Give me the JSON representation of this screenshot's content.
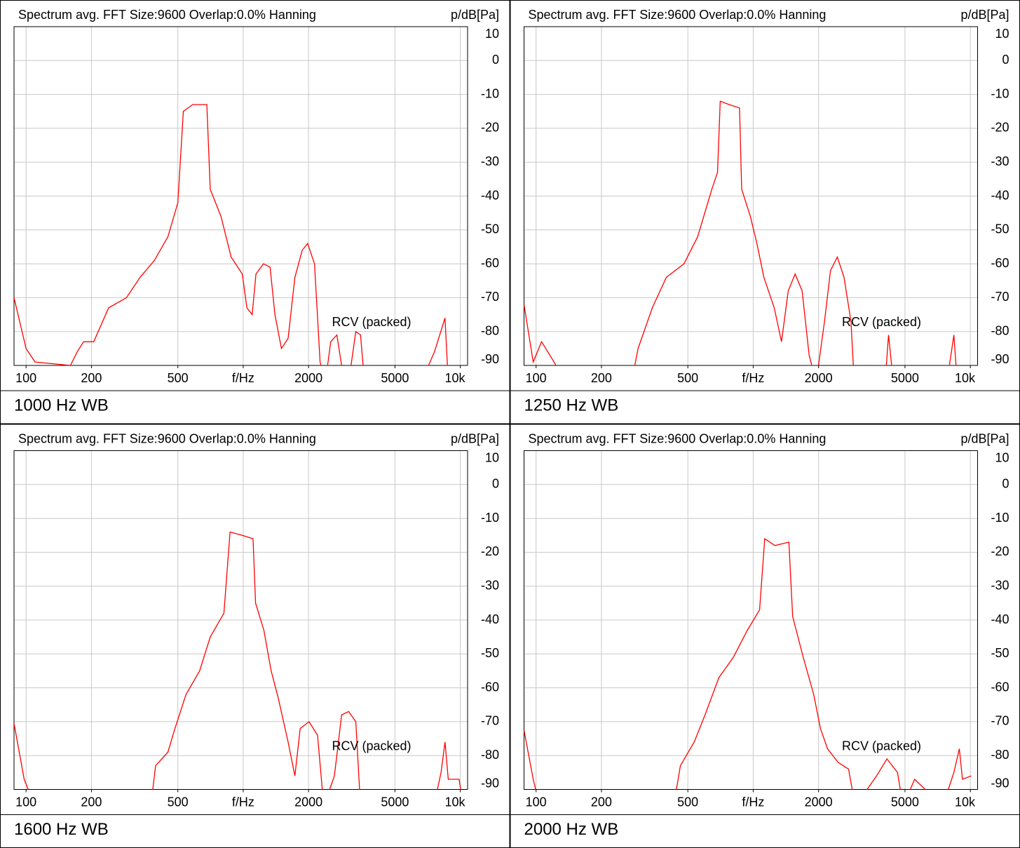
{
  "chart_data": [
    {
      "type": "line",
      "title": "Spectrum avg.  FFT Size:9600  Overlap:0.0%  Hanning",
      "ylabel": "p/dB[Pa]",
      "annotation": "RCV (packed)",
      "caption": "1000 Hz WB",
      "x_log": true,
      "grid": true,
      "color": "#ff0000",
      "xlim": [
        88,
        10800
      ],
      "ylim": [
        -90,
        10
      ],
      "xticks": [
        100,
        200,
        500,
        {
          "value": 1000,
          "label": "f/Hz"
        },
        2000,
        5000,
        {
          "value": 10000,
          "label": "10k"
        }
      ],
      "yticks": [
        10,
        0,
        -10,
        -20,
        -30,
        -40,
        -50,
        -60,
        -70,
        -80,
        -90
      ],
      "x": [
        88,
        95,
        100,
        110,
        160,
        172,
        184,
        205,
        240,
        290,
        335,
        390,
        450,
        500,
        530,
        585,
        680,
        705,
        790,
        880,
        990,
        1040,
        1100,
        1145,
        1240,
        1330,
        1400,
        1500,
        1610,
        1730,
        1870,
        1980,
        2130,
        2260,
        2390,
        2530,
        2700,
        2840,
        3060,
        3300,
        3470,
        3620,
        6600,
        7600,
        8500,
        8800
      ],
      "values": [
        -70,
        -79,
        -85,
        -89,
        -90,
        -86,
        -83,
        -83,
        -73,
        -70,
        -64,
        -59,
        -52,
        -42,
        -15,
        -13,
        -13,
        -38,
        -46,
        -58,
        -63,
        -73,
        -75,
        -63,
        -60,
        -61,
        -75,
        -85,
        -82,
        -64,
        -56,
        -54,
        -60,
        -89,
        -95,
        -83,
        -81,
        -90,
        -95,
        -80,
        -81,
        -95,
        -95,
        -86,
        -76,
        -95
      ]
    },
    {
      "type": "line",
      "title": "Spectrum avg.  FFT Size:9600  Overlap:0.0%  Hanning",
      "ylabel": "p/dB[Pa]",
      "annotation": "RCV (packed)",
      "caption": "1250 Hz WB",
      "x_log": true,
      "grid": true,
      "color": "#ff0000",
      "xlim": [
        88,
        10800
      ],
      "ylim": [
        -90,
        10
      ],
      "xticks": [
        100,
        200,
        500,
        {
          "value": 1000,
          "label": "f/Hz"
        },
        2000,
        5000,
        {
          "value": 10000,
          "label": "10k"
        }
      ],
      "yticks": [
        10,
        0,
        -10,
        -20,
        -30,
        -40,
        -50,
        -60,
        -70,
        -80,
        -90
      ],
      "x": [
        88,
        97,
        106,
        121,
        136,
        275,
        295,
        343,
        398,
        480,
        555,
        645,
        685,
        705,
        775,
        865,
        885,
        970,
        1040,
        1120,
        1250,
        1350,
        1450,
        1560,
        1680,
        1810,
        1950,
        2130,
        2270,
        2440,
        2620,
        2820,
        2920,
        4050,
        4200,
        4420,
        7800,
        8400,
        8700
      ],
      "values": [
        -72,
        -89,
        -83,
        -89,
        -95,
        -95,
        -85,
        -73,
        -64,
        -60,
        -52,
        -38,
        -33,
        -12,
        -13,
        -14,
        -38,
        -46,
        -54,
        -64,
        -73,
        -83,
        -68,
        -63,
        -68,
        -87,
        -95,
        -77,
        -62,
        -58,
        -64,
        -77,
        -95,
        -95,
        -81,
        -95,
        -95,
        -81,
        -95
      ]
    },
    {
      "type": "line",
      "title": "Spectrum avg.  FFT Size:9600  Overlap:0.0%  Hanning",
      "ylabel": "p/dB[Pa]",
      "annotation": "RCV (packed)",
      "caption": "1600 Hz WB",
      "x_log": true,
      "grid": true,
      "color": "#ff0000",
      "xlim": [
        88,
        10800
      ],
      "ylim": [
        -90,
        10
      ],
      "xticks": [
        100,
        200,
        500,
        {
          "value": 1000,
          "label": "f/Hz"
        },
        2000,
        5000,
        {
          "value": 10000,
          "label": "10k"
        }
      ],
      "yticks": [
        10,
        0,
        -10,
        -20,
        -30,
        -40,
        -50,
        -60,
        -70,
        -80,
        -90
      ],
      "x": [
        88,
        98,
        110,
        375,
        395,
        450,
        485,
        545,
        630,
        705,
        815,
        870,
        990,
        1110,
        1140,
        1245,
        1345,
        1450,
        1610,
        1730,
        1830,
        2010,
        2200,
        2350,
        2630,
        2840,
        3060,
        3300,
        3470,
        7550,
        8150,
        8500,
        8800,
        9870,
        10300
      ],
      "values": [
        -70.5,
        -87,
        -95,
        -95,
        -83,
        -79,
        -72,
        -62,
        -55,
        -45,
        -38,
        -14,
        -15,
        -16,
        -35,
        -43,
        -55,
        -63,
        -76,
        -86,
        -72,
        -70,
        -74,
        -95,
        -86,
        -68,
        -67,
        -70,
        -95,
        -95,
        -85,
        -76,
        -87,
        -87,
        -95
      ]
    },
    {
      "type": "line",
      "title": "Spectrum avg.  FFT Size:9600  Overlap:0.0%  Hanning",
      "ylabel": "p/dB[Pa]",
      "annotation": "RCV (packed)",
      "caption": "2000 Hz WB",
      "x_log": true,
      "grid": true,
      "color": "#ff0000",
      "xlim": [
        88,
        10800
      ],
      "ylim": [
        -90,
        10
      ],
      "xticks": [
        100,
        200,
        500,
        {
          "value": 1000,
          "label": "f/Hz"
        },
        2000,
        5000,
        {
          "value": 10000,
          "label": "10k"
        }
      ],
      "yticks": [
        10,
        0,
        -10,
        -20,
        -30,
        -40,
        -50,
        -60,
        -70,
        -80,
        -90
      ],
      "x": [
        88,
        97,
        104,
        430,
        462,
        535,
        600,
        695,
        810,
        940,
        1070,
        1130,
        1260,
        1460,
        1520,
        1700,
        1900,
        2040,
        2200,
        2460,
        2750,
        2950,
        3700,
        4130,
        4620,
        4900,
        5540,
        7460,
        8400,
        8900,
        9200,
        10100
      ],
      "values": [
        -72.5,
        -87,
        -95,
        -95,
        -83,
        -76,
        -68,
        -57,
        -51,
        -43,
        -37,
        -16,
        -18,
        -17,
        -39,
        -51,
        -62,
        -72,
        -78,
        -82,
        -84,
        -95,
        -86,
        -81,
        -85,
        -95,
        -87,
        -95,
        -85,
        -78,
        -87,
        -86
      ]
    }
  ]
}
